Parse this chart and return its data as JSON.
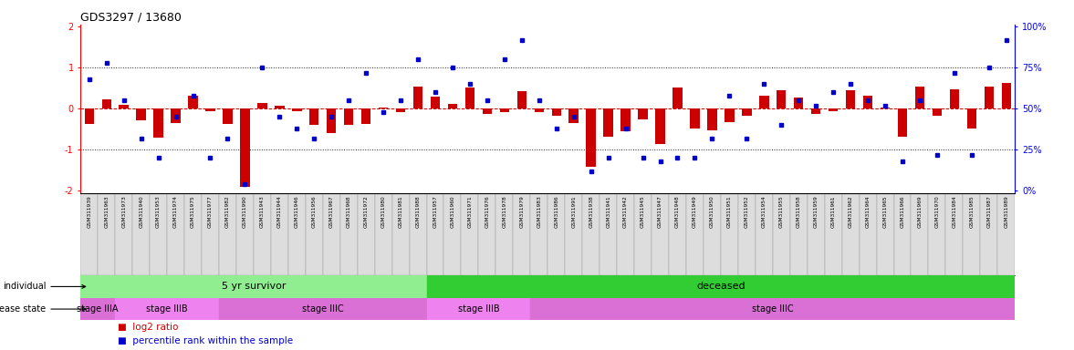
{
  "title": "GDS3297 / 13680",
  "samples": [
    "GSM311939",
    "GSM311963",
    "GSM311973",
    "GSM311940",
    "GSM311953",
    "GSM311974",
    "GSM311975",
    "GSM311977",
    "GSM311982",
    "GSM311990",
    "GSM311943",
    "GSM311944",
    "GSM311946",
    "GSM311956",
    "GSM311967",
    "GSM311968",
    "GSM311972",
    "GSM311980",
    "GSM311981",
    "GSM311988",
    "GSM311957",
    "GSM311960",
    "GSM311971",
    "GSM311976",
    "GSM311978",
    "GSM311979",
    "GSM311983",
    "GSM311986",
    "GSM311991",
    "GSM311938",
    "GSM311941",
    "GSM311942",
    "GSM311945",
    "GSM311947",
    "GSM311948",
    "GSM311949",
    "GSM311950",
    "GSM311951",
    "GSM311952",
    "GSM311954",
    "GSM311955",
    "GSM311958",
    "GSM311959",
    "GSM311961",
    "GSM311962",
    "GSM311964",
    "GSM311965",
    "GSM311966",
    "GSM311969",
    "GSM311970",
    "GSM311984",
    "GSM311985",
    "GSM311987",
    "GSM311989"
  ],
  "log2_ratio": [
    -0.38,
    0.22,
    0.1,
    -0.28,
    -0.7,
    -0.35,
    0.32,
    -0.05,
    -0.38,
    -1.9,
    0.15,
    0.08,
    -0.05,
    -0.4,
    -0.6,
    -0.4,
    -0.38,
    0.04,
    -0.08,
    0.55,
    0.3,
    0.12,
    0.52,
    -0.12,
    -0.08,
    0.42,
    -0.08,
    -0.18,
    -0.35,
    -1.42,
    -0.68,
    -0.55,
    -0.25,
    -0.85,
    0.52,
    -0.48,
    -0.52,
    -0.32,
    -0.18,
    0.32,
    0.45,
    0.28,
    -0.12,
    -0.05,
    0.45,
    0.32,
    0.04,
    -0.68,
    0.55,
    -0.18,
    0.48,
    -0.48,
    0.55,
    0.62
  ],
  "percentile": [
    68,
    78,
    55,
    32,
    20,
    45,
    58,
    20,
    32,
    4,
    75,
    45,
    38,
    32,
    45,
    55,
    72,
    48,
    55,
    80,
    60,
    75,
    65,
    55,
    80,
    92,
    55,
    38,
    45,
    12,
    20,
    38,
    20,
    18,
    20,
    20,
    32,
    58,
    32,
    65,
    40,
    55,
    52,
    60,
    65,
    55,
    52,
    18,
    55,
    22,
    72,
    22,
    75,
    92
  ],
  "individual_groups": [
    {
      "label": "5 yr survivor",
      "start": 0,
      "end": 20,
      "color": "#90EE90"
    },
    {
      "label": "deceased",
      "start": 20,
      "end": 54,
      "color": "#32CD32"
    }
  ],
  "disease_groups": [
    {
      "label": "stage IIIA",
      "start": 0,
      "end": 2,
      "color": "#DA70D6"
    },
    {
      "label": "stage IIIB",
      "start": 2,
      "end": 8,
      "color": "#EE82EE"
    },
    {
      "label": "stage IIIC",
      "start": 8,
      "end": 20,
      "color": "#DA70D6"
    },
    {
      "label": "stage IIIB",
      "start": 20,
      "end": 26,
      "color": "#EE82EE"
    },
    {
      "label": "stage IIIC",
      "start": 26,
      "end": 54,
      "color": "#DA70D6"
    }
  ],
  "ylim": [
    -2.05,
    2.05
  ],
  "bar_color": "#CC0000",
  "dot_color": "#0000CC",
  "zero_line_color": "#CC0000",
  "dotted_line_color": "#222222",
  "background_color": "#FFFFFF",
  "sample_box_color": "#CCCCCC",
  "ind_label_color": "#000000",
  "dis_label_color": "#000000"
}
